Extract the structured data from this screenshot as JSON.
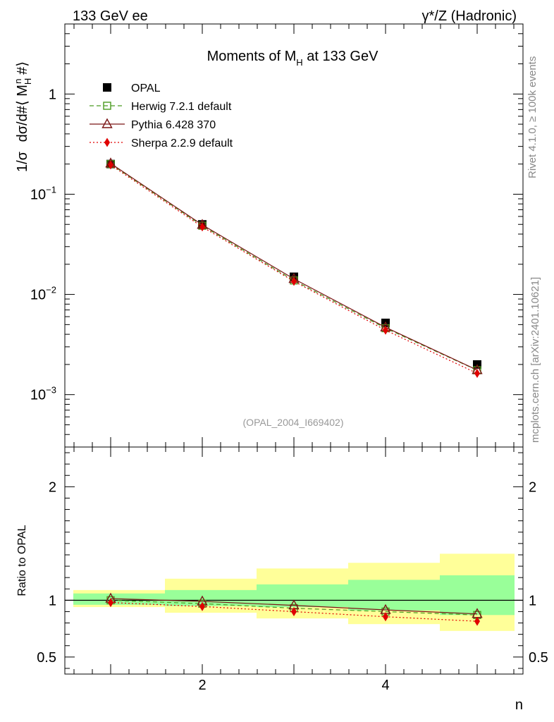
{
  "header": {
    "left": "133 GeV ee",
    "right": "γ*/Z (Hadronic)"
  },
  "side_labels": {
    "rivet": "Rivet 4.1.0, ≥ 100k events",
    "mcplots": "mcplots.cern.ch [arXiv:2401.10621]"
  },
  "chart_data": [
    {
      "type": "scatter",
      "title": "Moments of M_H at 133 GeV",
      "title_main": "Moments of M",
      "title_sub": "H",
      "title_tail": " at 133 GeV",
      "subtitle": "(OPAL_2004_I669402)",
      "ylabel": "1/σ  dσ/d#⟨ M_H^n #⟩",
      "xlim": [
        0.5,
        5.5
      ],
      "ylog": true,
      "ylim": [
        0.0003,
        5
      ],
      "yticks": [
        0.001,
        0.01,
        0.1,
        1
      ],
      "ytick_labels": [
        {
          "base": "10",
          "exp": "−3"
        },
        {
          "base": "10",
          "exp": "−2"
        },
        {
          "base": "10",
          "exp": "−1"
        },
        {
          "base": "1",
          "exp": ""
        }
      ],
      "x": [
        1,
        2,
        3,
        4,
        5
      ],
      "series": [
        {
          "name": "OPAL",
          "color": "#000000",
          "marker": "square-filled",
          "line": "none",
          "values": [
            0.2,
            0.05,
            0.015,
            0.0052,
            0.002
          ]
        },
        {
          "name": "Herwig 7.2.1 default",
          "color": "#4a9a20",
          "marker": "square-open",
          "line": "dashed",
          "values": [
            0.2,
            0.0485,
            0.0138,
            0.0046,
            0.00175
          ]
        },
        {
          "name": "Pythia 6.428 370",
          "color": "#7a1515",
          "marker": "triangle-open",
          "line": "solid",
          "values": [
            0.203,
            0.0495,
            0.0143,
            0.0047,
            0.00176
          ]
        },
        {
          "name": "Sherpa 2.2.9 default",
          "color": "#e00000",
          "marker": "diamond-filled",
          "line": "dotted",
          "values": [
            0.196,
            0.0472,
            0.0135,
            0.0044,
            0.00163
          ]
        }
      ]
    },
    {
      "type": "scatter",
      "ylabel": "Ratio to OPAL",
      "xlabel": "n",
      "xlim": [
        0.5,
        5.5
      ],
      "ylim": [
        0.35,
        2.35
      ],
      "yticks": [
        0.5,
        1,
        2
      ],
      "ytick_labels": [
        "0.5",
        "1",
        "2"
      ],
      "xticks": [
        2,
        4
      ],
      "xtick_labels": [
        "2",
        "4"
      ],
      "reference_line": 1,
      "bands": {
        "x_edges": [
          0.5,
          1.5,
          2.5,
          3.5,
          4.5,
          5.5
        ],
        "green_low": [
          0.96,
          0.95,
          0.94,
          0.91,
          0.87
        ],
        "green_high": [
          1.06,
          1.09,
          1.14,
          1.18,
          1.22
        ],
        "yellow_low": [
          0.94,
          0.89,
          0.84,
          0.79,
          0.73
        ],
        "yellow_high": [
          1.09,
          1.19,
          1.28,
          1.33,
          1.41
        ],
        "green_color": "#99ff99",
        "yellow_color": "#ffff99"
      },
      "x": [
        1,
        2,
        3,
        4,
        5
      ],
      "series": [
        {
          "name": "Herwig 7.2.1 default",
          "color": "#4a9a20",
          "marker": "square-open",
          "line": "dashed",
          "values": [
            1.0,
            0.97,
            0.93,
            0.9,
            0.87
          ]
        },
        {
          "name": "Pythia 6.428 370",
          "color": "#7a1515",
          "marker": "triangle-open",
          "line": "solid",
          "values": [
            1.015,
            0.99,
            0.955,
            0.915,
            0.88
          ]
        },
        {
          "name": "Sherpa 2.2.9 default",
          "color": "#e00000",
          "marker": "diamond-filled",
          "line": "dotted",
          "values": [
            0.98,
            0.945,
            0.9,
            0.855,
            0.815
          ]
        }
      ]
    }
  ]
}
